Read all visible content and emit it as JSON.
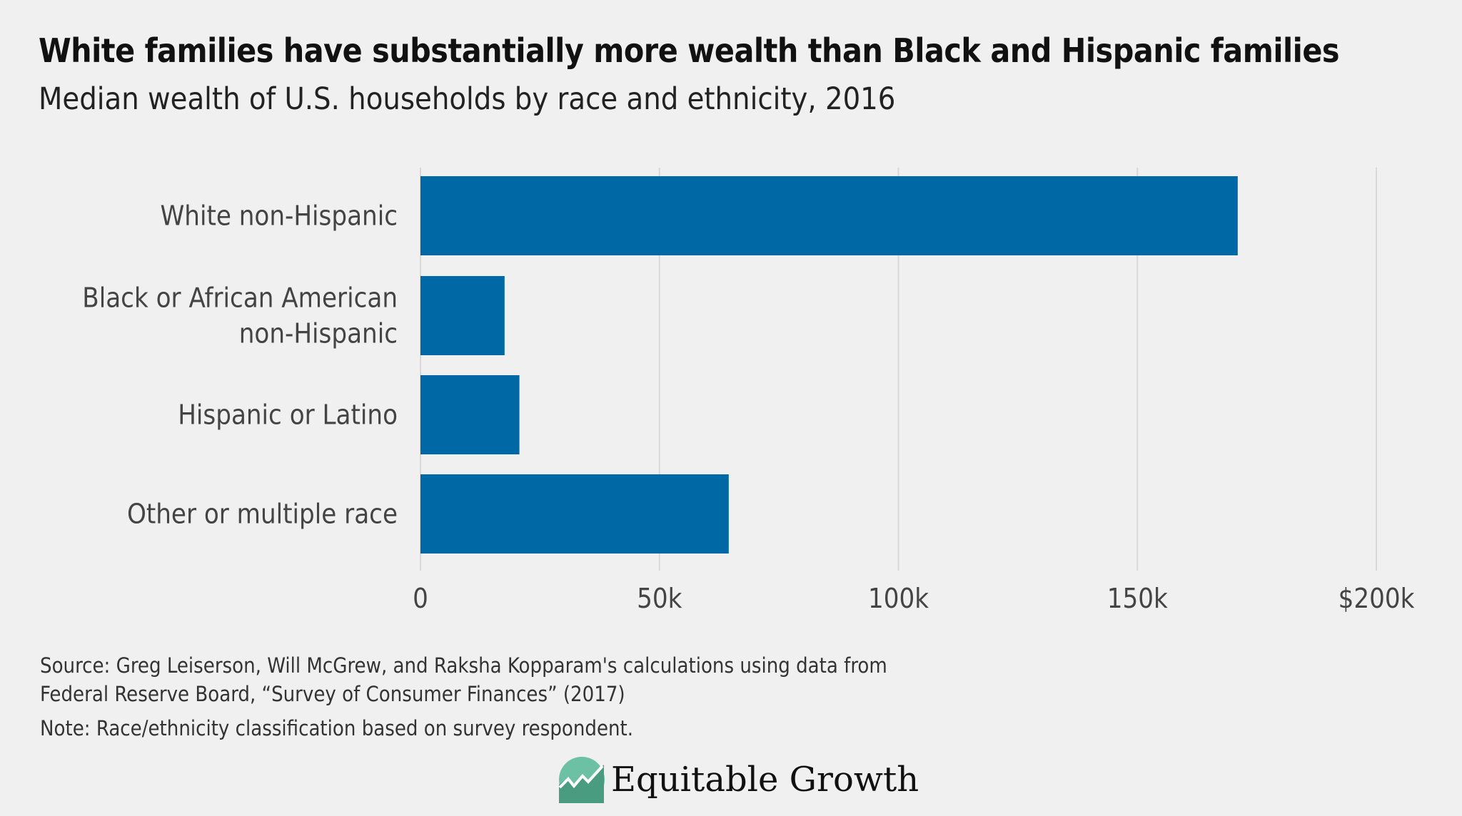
{
  "header": {
    "title": "White families have substantially more wealth than Black and Hispanic families",
    "subtitle": "Median wealth of U.S. households by race and ethnicity, 2016"
  },
  "chart_data": {
    "type": "bar",
    "orientation": "horizontal",
    "categories": [
      [
        "White non-Hispanic"
      ],
      [
        "Black or African American",
        "non-Hispanic"
      ],
      [
        "Hispanic or Latino"
      ],
      [
        "Other or multiple race"
      ]
    ],
    "values": [
      171000,
      17600,
      20700,
      64500
    ],
    "xlim": [
      0,
      200000
    ],
    "xticks": [
      0,
      50000,
      100000,
      150000,
      200000
    ],
    "xtick_labels": [
      "0",
      "50k",
      "100k",
      "150k",
      "$200k"
    ],
    "grid": "vertical",
    "bar_color": "#0069a5",
    "grid_color": "#d8d8d8"
  },
  "footer": {
    "source_line1": "Source: Greg Leiserson, Will McGrew, and Raksha Kopparam's calculations using data from",
    "source_line2": "Federal Reserve Board, “Survey of Consumer Finances” (2017)",
    "note": "Note: Race/ethnicity classification based on survey respondent.",
    "logo_text": "Equitable Growth"
  }
}
